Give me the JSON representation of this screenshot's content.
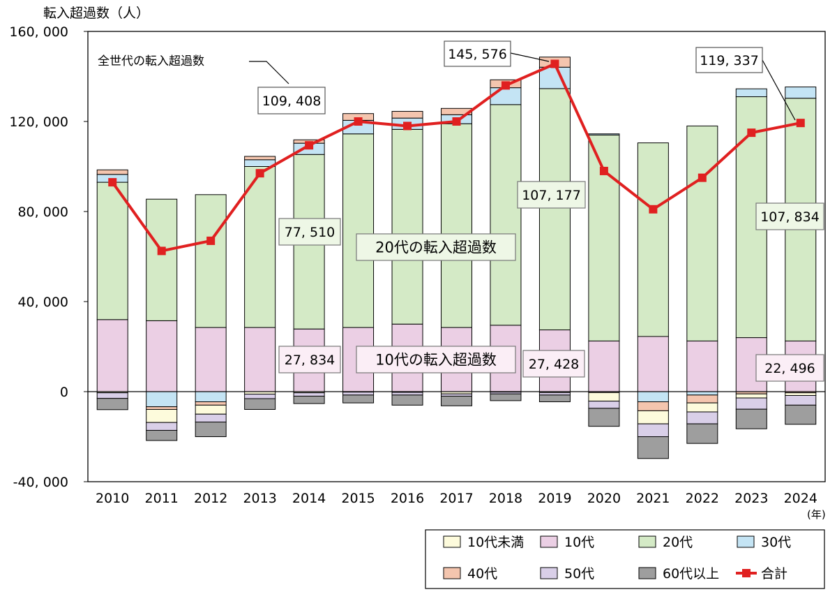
{
  "chart_data": {
    "type": "bar",
    "stacked": true,
    "y_axis_title": "転入超過数（人）",
    "x_unit": "(年)",
    "ylim": [
      -40000,
      160000
    ],
    "y_ticks": [
      160000,
      120000,
      80000,
      40000,
      0,
      -40000
    ],
    "y_tick_labels": [
      "160, 000",
      "120, 000",
      "80, 000",
      "40, 000",
      "0",
      "-40, 000"
    ],
    "categories": [
      "2010",
      "2011",
      "2012",
      "2013",
      "2014",
      "2015",
      "2016",
      "2017",
      "2018",
      "2019",
      "2020",
      "2021",
      "2022",
      "2023",
      "2024"
    ],
    "series": [
      {
        "name": "10代未満",
        "color": "#fdfbdc",
        "values": [
          -500,
          -5800,
          -4000,
          -1100,
          -500,
          -200,
          -300,
          -1000,
          -200,
          -400,
          -3800,
          -5800,
          -4000,
          -1800,
          -1200
        ]
      },
      {
        "name": "10代",
        "color": "#ebcfe4",
        "values": [
          32000,
          31500,
          28500,
          28500,
          27834,
          28500,
          30000,
          28500,
          29500,
          27428,
          22500,
          24500,
          22500,
          24000,
          22496
        ]
      },
      {
        "name": "20代",
        "color": "#d4eac6",
        "values": [
          61000,
          54000,
          59000,
          71500,
          77510,
          86000,
          86500,
          90500,
          98000,
          107177,
          91500,
          86000,
          95500,
          107000,
          107834
        ]
      },
      {
        "name": "30代",
        "color": "#c4e4f4",
        "values": [
          3500,
          -6700,
          -4500,
          3000,
          5000,
          6000,
          5000,
          4000,
          7500,
          9500,
          500,
          -4500,
          -1500,
          3500,
          5000
        ]
      },
      {
        "name": "40代",
        "color": "#f4c5ae",
        "values": [
          2000,
          -1200,
          -1500,
          1500,
          1500,
          3000,
          3000,
          2800,
          3500,
          4500,
          -400,
          -4000,
          -3500,
          -1000,
          -500
        ]
      },
      {
        "name": "50代",
        "color": "#d9cfe8",
        "values": [
          -2500,
          -3500,
          -3500,
          -2000,
          -1500,
          -1300,
          -1200,
          -1000,
          -800,
          -1100,
          -3200,
          -5700,
          -5300,
          -5000,
          -4300
        ]
      },
      {
        "name": "60代以上",
        "color": "#9e9e9e",
        "values": [
          -5000,
          -4500,
          -6500,
          -4800,
          -3300,
          -3500,
          -4500,
          -4300,
          -3000,
          -3000,
          -8000,
          -9700,
          -8700,
          -8700,
          -8500
        ]
      }
    ],
    "total": {
      "name": "合計",
      "color": "#e02020",
      "values": [
        93000,
        62500,
        67000,
        97000,
        109408,
        120000,
        118000,
        120000,
        136000,
        145576,
        98000,
        81000,
        95000,
        115000,
        119337
      ]
    },
    "annotations": [
      {
        "text": "全世代の転入超過数",
        "index": 4,
        "value": 109408,
        "style": "plain"
      },
      {
        "text": "109, 408",
        "index": 4,
        "value": 109408,
        "style": "white"
      },
      {
        "text": "145, 576",
        "index": 9,
        "value": 145576,
        "style": "white"
      },
      {
        "text": "119, 337",
        "index": 14,
        "value": 119337,
        "style": "white"
      },
      {
        "text": "20代の転入超過数",
        "style": "green"
      },
      {
        "text": "77, 510",
        "index": 4,
        "style": "green"
      },
      {
        "text": "107, 177",
        "index": 9,
        "style": "green"
      },
      {
        "text": "107, 834",
        "index": 14,
        "style": "green"
      },
      {
        "text": "10代の転入超過数",
        "style": "pink"
      },
      {
        "text": "27, 834",
        "index": 4,
        "style": "pink"
      },
      {
        "text": "27, 428",
        "index": 9,
        "style": "pink"
      },
      {
        "text": "22, 496",
        "index": 14,
        "style": "pink"
      }
    ],
    "legend_position": "bottom-right",
    "grid": false
  }
}
